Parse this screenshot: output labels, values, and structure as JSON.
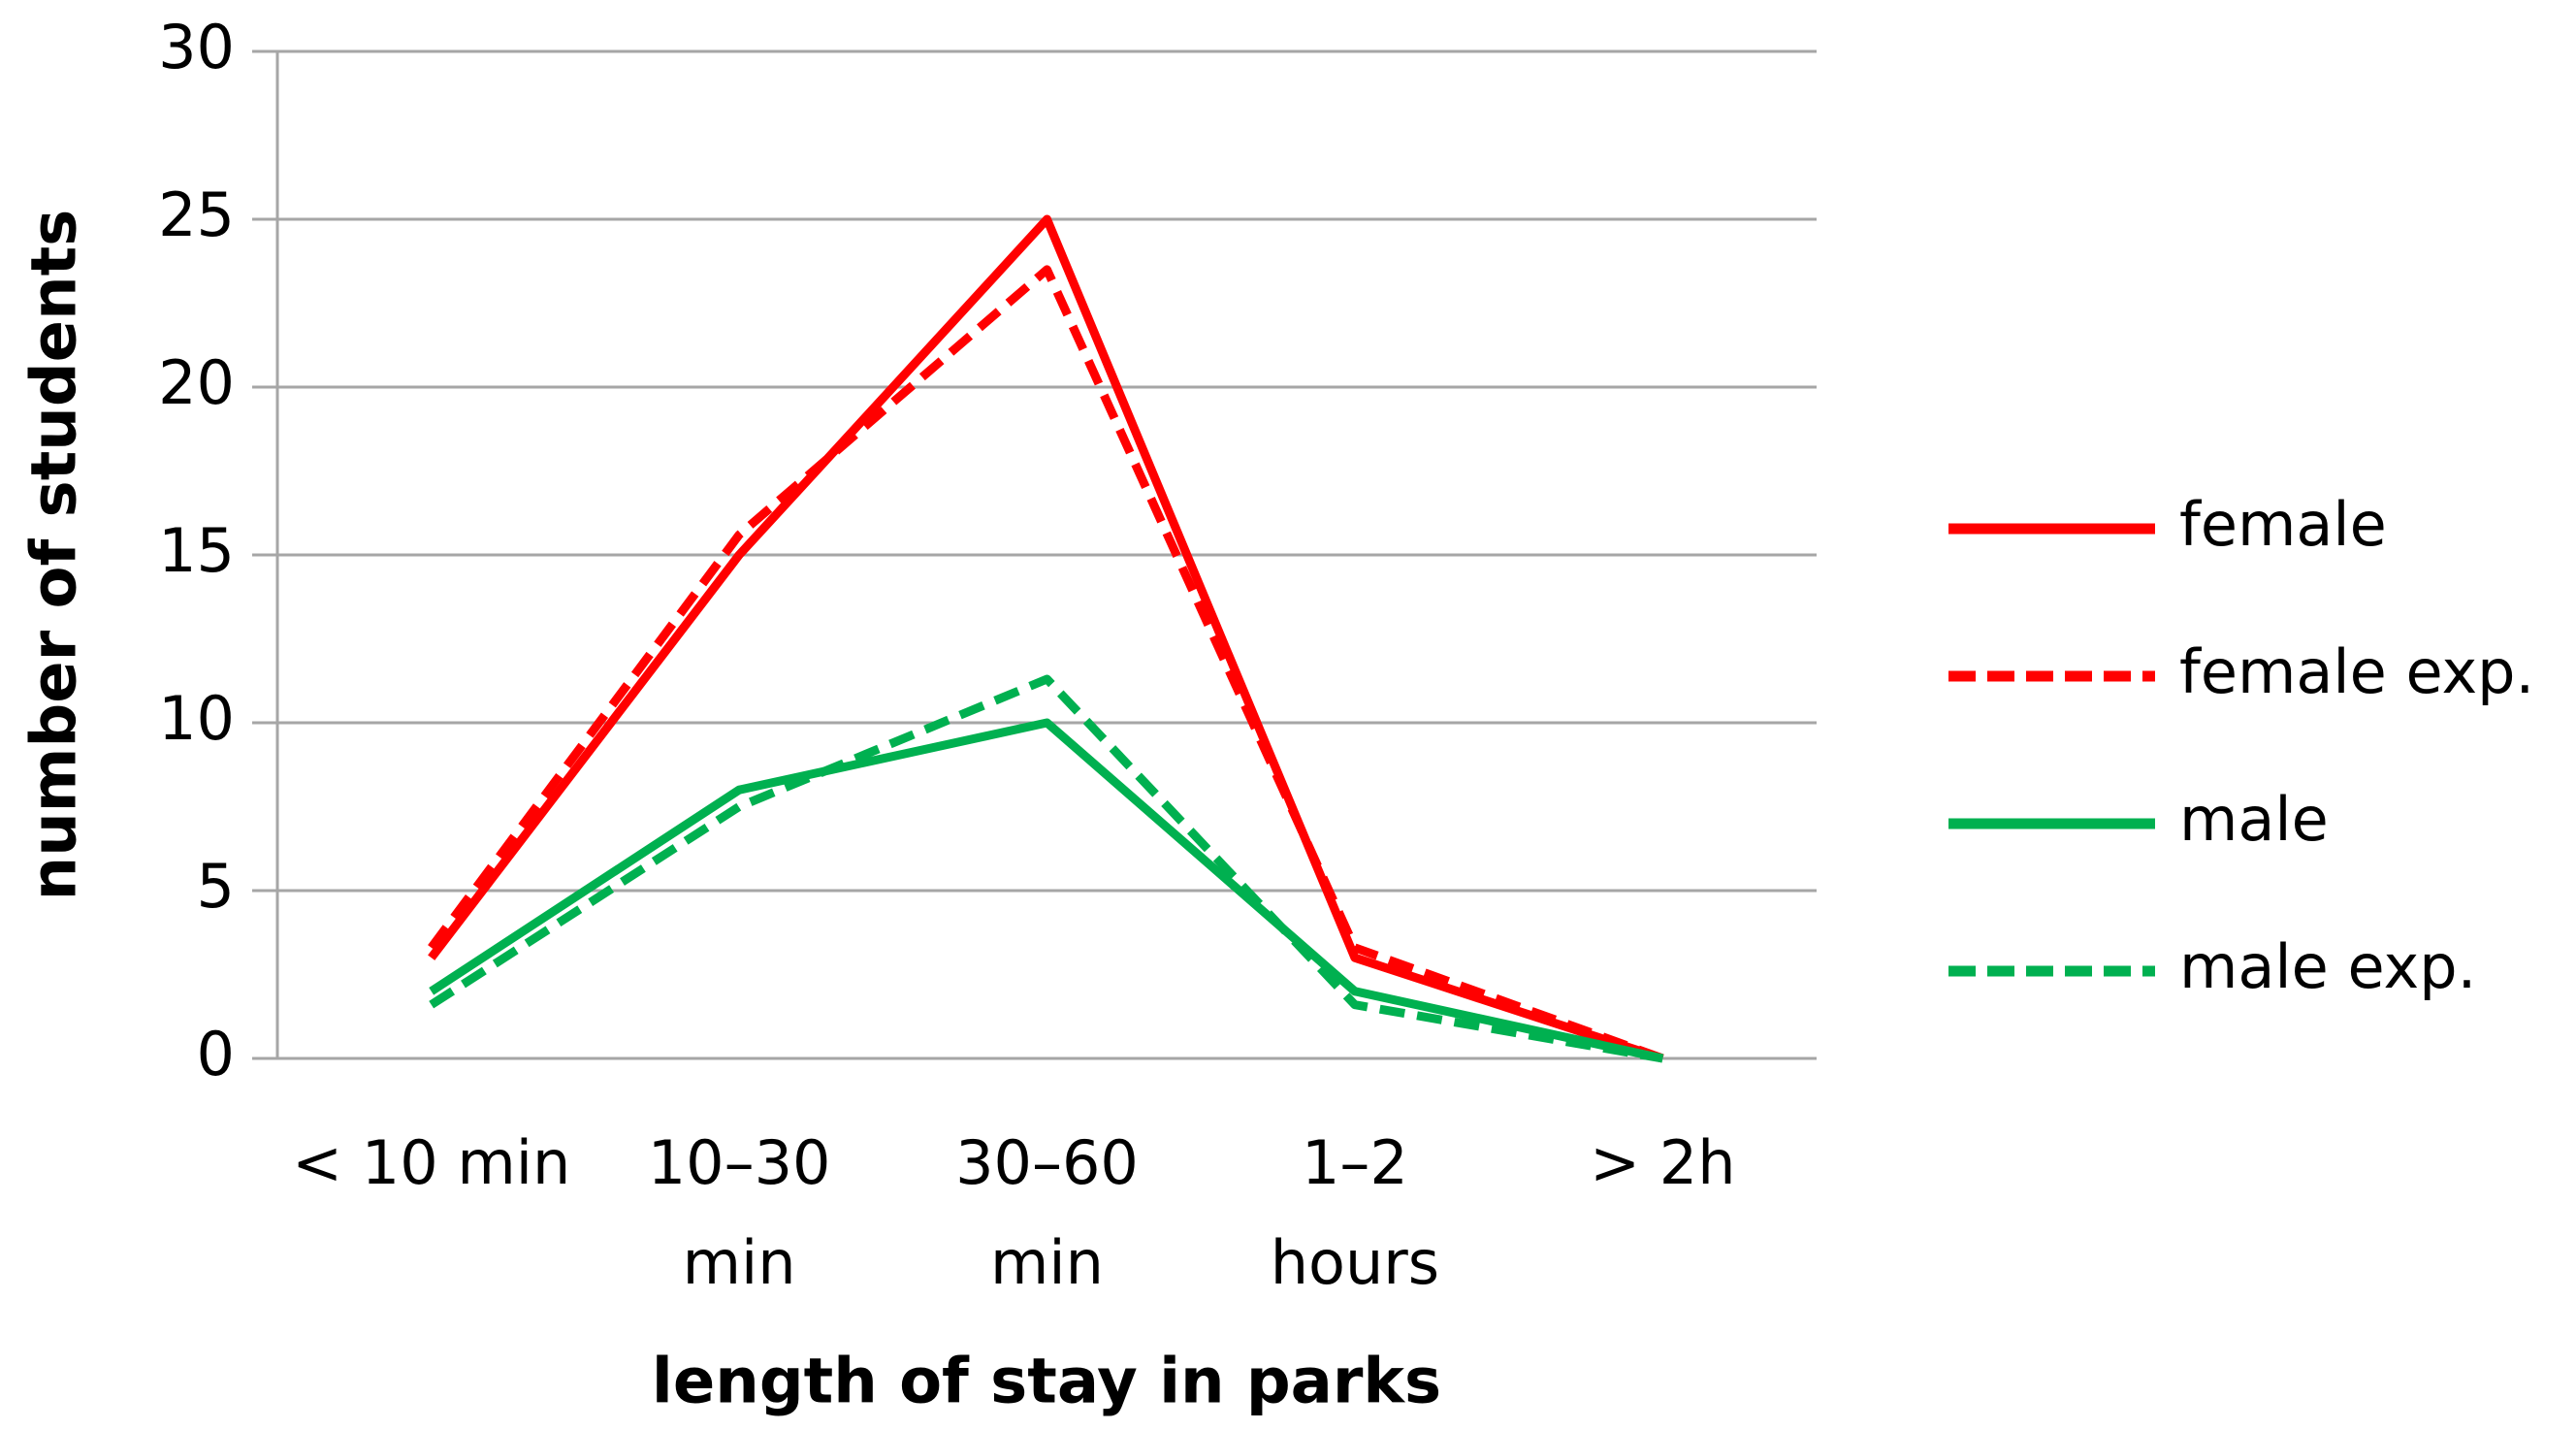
{
  "chart_data": {
    "type": "line",
    "x_label": "length of stay in parks",
    "y_label": "number of students",
    "categories": [
      [
        "< 10 min"
      ],
      [
        "10–30",
        "min"
      ],
      [
        "30–60",
        "min"
      ],
      [
        "1–2",
        "hours"
      ],
      [
        "> 2h"
      ]
    ],
    "series": [
      {
        "name": "female",
        "color": "#ff0000",
        "dashed": false,
        "values": [
          3,
          15,
          25,
          3,
          0
        ]
      },
      {
        "name": "female exp.",
        "color": "#ff0000",
        "dashed": true,
        "values": [
          3.3,
          15.6,
          23.5,
          3.3,
          0
        ]
      },
      {
        "name": "male",
        "color": "#00b050",
        "dashed": false,
        "values": [
          2,
          8,
          10,
          2,
          0
        ]
      },
      {
        "name": "male exp.",
        "color": "#00b050",
        "dashed": true,
        "values": [
          1.6,
          7.5,
          11.3,
          1.6,
          0
        ]
      }
    ],
    "ylim": [
      0,
      30
    ],
    "yticks": [
      0,
      5,
      10,
      15,
      20,
      25,
      30
    ],
    "grid": true,
    "legend": "right"
  }
}
